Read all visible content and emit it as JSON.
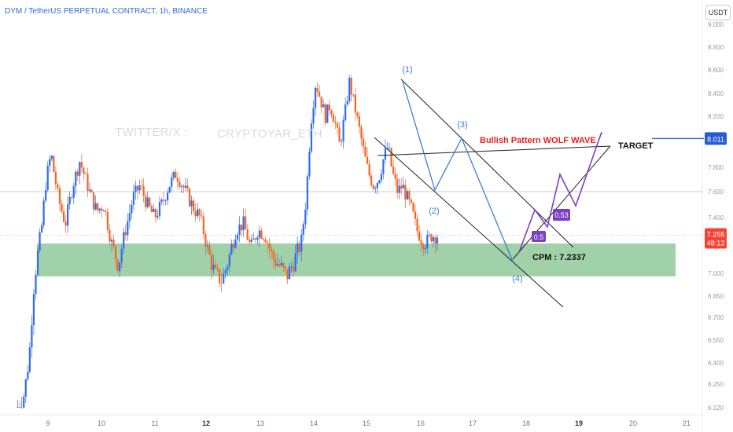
{
  "header": {
    "title": "DYM / TetherUS PERPETUAL CONTRACT, 1h, BINANCE",
    "currency": "USDT"
  },
  "watermark": {
    "left": "TWİTTER/X :",
    "right": "CRYPTOYAR_ETH"
  },
  "colors": {
    "up": "#2f6bf0",
    "down": "#f26522",
    "zone": "#8fc99a",
    "channel": "#222222",
    "wave": "#3b7ed8",
    "projection": "#7b3fc4",
    "target_line": "#2a5bd7",
    "pattern_label": "#e52222",
    "price_tag": "#f44336"
  },
  "annotations": {
    "pattern": "Bullish Pattern WOLF WAVE",
    "target": "TARGET",
    "cpm": "CPM : 7.2337",
    "wave1": "(1)",
    "wave2": "(2)",
    "wave3": "(3)",
    "wave4": "(4)",
    "badge1": "0.5",
    "badge2": "0.53"
  },
  "chart_data": {
    "type": "candlestick",
    "y_axis": {
      "ticks": [
        "9.000",
        "8.800",
        "8.600",
        "8.400",
        "8.200",
        "8.000",
        "7.800",
        "7.600",
        "7.400",
        "7.200",
        "7.000",
        "6.850",
        "6.700",
        "6.550",
        "6.400",
        "6.250",
        "6.120"
      ],
      "range": [
        6.1,
        9.0
      ]
    },
    "x_axis": {
      "ticks": [
        "9",
        "10",
        "11",
        "12",
        "13",
        "14",
        "15",
        "16",
        "17",
        "18",
        "19",
        "20",
        "21"
      ],
      "bold": [
        "12",
        "19"
      ]
    },
    "current_price": {
      "value": "7.255",
      "countdown": "48:12"
    },
    "target_price": "8.011",
    "support_zone": [
      6.98,
      7.19
    ],
    "horizontal_ref": 7.6,
    "cpm_value": 7.2337,
    "price_path": [
      [
        0,
        6.12
      ],
      [
        0.3,
        6.2
      ],
      [
        0.5,
        6.45
      ],
      [
        0.7,
        6.95
      ],
      [
        1,
        7.3
      ],
      [
        1.2,
        7.7
      ],
      [
        1.4,
        7.9
      ],
      [
        1.7,
        7.55
      ],
      [
        2,
        7.35
      ],
      [
        2.3,
        7.65
      ],
      [
        2.6,
        7.85
      ],
      [
        3,
        7.6
      ],
      [
        3.3,
        7.45
      ],
      [
        3.6,
        7.5
      ],
      [
        3.9,
        7.2
      ],
      [
        4.2,
        7.05
      ],
      [
        4.5,
        7.3
      ],
      [
        4.8,
        7.55
      ],
      [
        5.1,
        7.65
      ],
      [
        5.4,
        7.5
      ],
      [
        5.7,
        7.4
      ],
      [
        6,
        7.5
      ],
      [
        6.3,
        7.65
      ],
      [
        6.6,
        7.75
      ],
      [
        7,
        7.6
      ],
      [
        7.3,
        7.48
      ],
      [
        7.6,
        7.4
      ],
      [
        7.9,
        7.15
      ],
      [
        8.2,
        7.0
      ],
      [
        8.5,
        6.95
      ],
      [
        8.8,
        7.1
      ],
      [
        9.1,
        7.3
      ],
      [
        9.4,
        7.35
      ],
      [
        9.7,
        7.15
      ],
      [
        10,
        7.3
      ],
      [
        10.3,
        7.25
      ],
      [
        10.6,
        7.1
      ],
      [
        10.9,
        7.05
      ],
      [
        11.2,
        6.98
      ],
      [
        11.5,
        7.08
      ],
      [
        11.8,
        7.2
      ],
      [
        12,
        7.55
      ],
      [
        12.2,
        8.15
      ],
      [
        12.4,
        8.5
      ],
      [
        12.6,
        8.35
      ],
      [
        12.8,
        8.2
      ],
      [
        13,
        8.3
      ],
      [
        13.2,
        8.15
      ],
      [
        13.4,
        7.95
      ],
      [
        13.6,
        8.2
      ],
      [
        13.8,
        8.5
      ],
      [
        14,
        8.3
      ],
      [
        14.2,
        8.1
      ],
      [
        14.4,
        7.9
      ],
      [
        14.6,
        7.75
      ],
      [
        14.8,
        7.65
      ],
      [
        15,
        7.7
      ],
      [
        15.2,
        7.85
      ],
      [
        15.4,
        7.95
      ],
      [
        15.6,
        7.75
      ],
      [
        15.8,
        7.6
      ],
      [
        16,
        7.65
      ],
      [
        16.2,
        7.55
      ],
      [
        16.4,
        7.45
      ],
      [
        16.6,
        7.3
      ],
      [
        16.8,
        7.22
      ],
      [
        17,
        7.2
      ],
      [
        17.2,
        7.25
      ],
      [
        17.4,
        7.25
      ],
      [
        17.5,
        7.255
      ]
    ]
  }
}
